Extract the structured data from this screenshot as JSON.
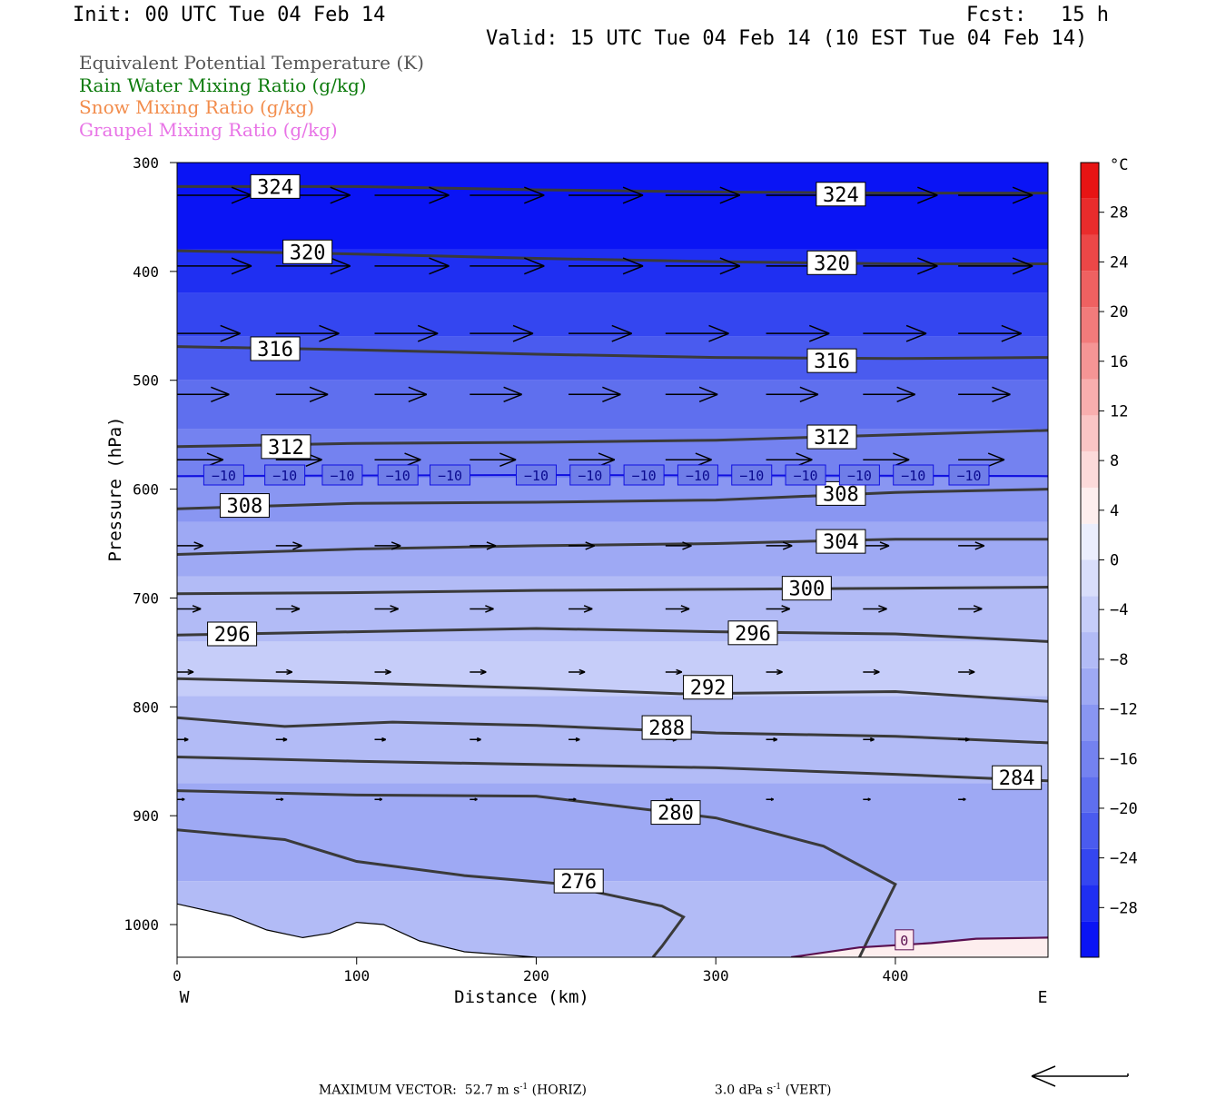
{
  "header": {
    "init": "Init: 00 UTC Tue 04 Feb 14",
    "fcst_label": "Fcst:",
    "fcst_value": "15 h",
    "valid": "Valid: 15 UTC Tue 04 Feb 14 (10 EST Tue 04 Feb 14)"
  },
  "fields": [
    {
      "label": "Equivalent Potential Temperature (K)",
      "color": "#555555"
    },
    {
      "label": "Rain Water Mixing Ratio (g/kg)",
      "color": "#0b7a0b"
    },
    {
      "label": "Snow Mixing Ratio (g/kg)",
      "color": "#f28c4b"
    },
    {
      "label": "Graupel Mixing Ratio (g/kg)",
      "color": "#e873e6"
    }
  ],
  "footer": {
    "max_vector_label": "MAXIMUM VECTOR:",
    "horiz_value": "52.7 m s",
    "horiz_exp": "-1",
    "horiz_tag": "(HORIZ)",
    "vert_value": "3.0 dPa s",
    "vert_exp": "-1",
    "vert_tag": "(VERT)"
  },
  "chart_data": {
    "type": "cross-section",
    "xlabel": "Distance (km)",
    "ylabel": "Pressure (hPa)",
    "xlim": [
      0,
      485
    ],
    "ylim": [
      300,
      1030
    ],
    "x_ticks": [
      0,
      100,
      200,
      300,
      400
    ],
    "y_ticks": [
      300,
      400,
      500,
      600,
      700,
      800,
      900,
      1000
    ],
    "x_end_labels": {
      "left": "W",
      "right": "E"
    },
    "colorbar": {
      "unit": "°C",
      "ticks": [
        28,
        24,
        20,
        16,
        12,
        8,
        4,
        0,
        -4,
        -8,
        -12,
        -16,
        -20,
        -24,
        -28
      ],
      "range": [
        -32,
        32
      ],
      "colors_cold_to_warm": [
        "#0a14f5",
        "#1f2ff2",
        "#3446f0",
        "#4a5bef",
        "#5f6fee",
        "#7482f0",
        "#8996f2",
        "#9ea9f4",
        "#b2bbf6",
        "#c6cdf9",
        "#d9defb",
        "#ebeefd",
        "#fdeeee",
        "#fcdada",
        "#fac5c5",
        "#f8aeae",
        "#f59595",
        "#f27b7b",
        "#ef6161",
        "#ec4747",
        "#e92c2c",
        "#e71414"
      ]
    },
    "theta_e_contours": [
      {
        "value": 324,
        "points": [
          [
            0,
            322
          ],
          [
            100,
            322
          ],
          [
            200,
            325
          ],
          [
            300,
            327
          ],
          [
            400,
            328
          ],
          [
            485,
            328
          ]
        ],
        "labels": [
          [
            42,
            322
          ],
          [
            357,
            329
          ]
        ]
      },
      {
        "value": 320,
        "points": [
          [
            0,
            381
          ],
          [
            100,
            384
          ],
          [
            200,
            388
          ],
          [
            300,
            391
          ],
          [
            400,
            393
          ],
          [
            485,
            393
          ]
        ],
        "labels": [
          [
            60,
            382
          ],
          [
            352,
            392
          ]
        ]
      },
      {
        "value": 316,
        "points": [
          [
            0,
            469
          ],
          [
            100,
            472
          ],
          [
            200,
            476
          ],
          [
            300,
            479
          ],
          [
            400,
            480
          ],
          [
            485,
            479
          ]
        ],
        "labels": [
          [
            42,
            471
          ],
          [
            352,
            482
          ]
        ]
      },
      {
        "value": 312,
        "points": [
          [
            0,
            561
          ],
          [
            100,
            558
          ],
          [
            200,
            557
          ],
          [
            300,
            555
          ],
          [
            400,
            550
          ],
          [
            485,
            546
          ]
        ],
        "labels": [
          [
            48,
            561
          ],
          [
            352,
            552
          ]
        ]
      },
      {
        "value": 308,
        "points": [
          [
            0,
            618
          ],
          [
            100,
            613
          ],
          [
            200,
            612
          ],
          [
            300,
            610
          ],
          [
            400,
            603
          ],
          [
            485,
            600
          ]
        ],
        "labels": [
          [
            25,
            615
          ],
          [
            357,
            604
          ]
        ]
      },
      {
        "value": 304,
        "points": [
          [
            0,
            660
          ],
          [
            100,
            655
          ],
          [
            200,
            652
          ],
          [
            300,
            650
          ],
          [
            400,
            646
          ],
          [
            485,
            646
          ]
        ],
        "labels": [
          [
            357,
            648
          ]
        ]
      },
      {
        "value": 300,
        "points": [
          [
            0,
            696
          ],
          [
            100,
            695
          ],
          [
            200,
            693
          ],
          [
            300,
            692
          ],
          [
            400,
            691
          ],
          [
            485,
            690
          ]
        ],
        "labels": [
          [
            338,
            691
          ]
        ]
      },
      {
        "value": 296,
        "points": [
          [
            0,
            734
          ],
          [
            100,
            731
          ],
          [
            200,
            728
          ],
          [
            300,
            731
          ],
          [
            400,
            733
          ],
          [
            485,
            740
          ]
        ],
        "labels": [
          [
            18,
            733
          ],
          [
            308,
            732
          ]
        ]
      },
      {
        "value": 292,
        "points": [
          [
            0,
            774
          ],
          [
            100,
            778
          ],
          [
            200,
            783
          ],
          [
            280,
            788
          ],
          [
            400,
            786
          ],
          [
            485,
            795
          ]
        ],
        "labels": [
          [
            283,
            782
          ]
        ]
      },
      {
        "value": 288,
        "points": [
          [
            0,
            810
          ],
          [
            60,
            818
          ],
          [
            120,
            814
          ],
          [
            200,
            817
          ],
          [
            300,
            824
          ],
          [
            400,
            827
          ],
          [
            485,
            833
          ]
        ],
        "labels": [
          [
            260,
            819
          ]
        ]
      },
      {
        "value": 284,
        "points": [
          [
            0,
            846
          ],
          [
            100,
            850
          ],
          [
            200,
            853
          ],
          [
            300,
            856
          ],
          [
            400,
            862
          ],
          [
            485,
            868
          ]
        ],
        "labels": [
          [
            455,
            865
          ]
        ]
      },
      {
        "value": 280,
        "points": [
          [
            0,
            877
          ],
          [
            100,
            881
          ],
          [
            200,
            882
          ],
          [
            300,
            902
          ],
          [
            360,
            928
          ],
          [
            400,
            963
          ],
          [
            385,
            1013
          ],
          [
            380,
            1030
          ]
        ],
        "labels": [
          [
            265,
            897
          ]
        ]
      },
      {
        "value": 276,
        "points": [
          [
            0,
            913
          ],
          [
            60,
            922
          ],
          [
            100,
            942
          ],
          [
            160,
            955
          ],
          [
            210,
            962
          ],
          [
            270,
            983
          ],
          [
            282,
            993
          ],
          [
            270,
            1020
          ],
          [
            265,
            1030
          ]
        ],
        "labels": [
          [
            211,
            960
          ]
        ]
      }
    ],
    "minus10_isotherm": {
      "value": -10,
      "points": [
        [
          0,
          588
        ],
        [
          200,
          587
        ],
        [
          485,
          588
        ]
      ],
      "label_x": [
        26,
        60,
        92,
        123,
        152,
        200,
        230,
        260,
        290,
        320,
        350,
        380,
        410,
        441
      ]
    },
    "zero_isotherm": {
      "value": 0,
      "points": [
        [
          342,
          1030
        ],
        [
          380,
          1021
        ],
        [
          420,
          1017
        ],
        [
          445,
          1013
        ],
        [
          485,
          1012
        ]
      ],
      "label_x": [
        405
      ]
    },
    "wind_rows": [
      {
        "p": 330,
        "x": [
          0,
          55,
          110,
          163,
          218,
          272,
          328,
          382,
          435,
          488
        ],
        "speed": 1
      },
      {
        "p": 395,
        "x": [
          0,
          55,
          110,
          163,
          218,
          272,
          328,
          382,
          435,
          488
        ],
        "speed": 1
      },
      {
        "p": 457,
        "x": [
          0,
          55,
          110,
          163,
          218,
          272,
          328,
          382,
          435,
          488
        ],
        "speed": 0.85
      },
      {
        "p": 513,
        "x": [
          0,
          55,
          110,
          163,
          218,
          272,
          328,
          382,
          435,
          488
        ],
        "speed": 0.7
      },
      {
        "p": 573,
        "x": [
          0,
          55,
          110,
          163,
          218,
          272,
          328,
          382,
          435,
          488
        ],
        "speed": 0.62
      },
      {
        "p": 652,
        "x": [
          0,
          55,
          110,
          163,
          218,
          272,
          328,
          382,
          435,
          488
        ],
        "speed": 0.35
      },
      {
        "p": 710,
        "x": [
          0,
          55,
          110,
          163,
          218,
          272,
          328,
          382,
          435,
          488
        ],
        "speed": 0.32
      },
      {
        "p": 768,
        "x": [
          0,
          55,
          110,
          163,
          218,
          272,
          328,
          382,
          435,
          488
        ],
        "speed": 0.22
      },
      {
        "p": 830,
        "x": [
          0,
          55,
          110,
          163,
          218,
          272,
          328,
          382,
          435,
          488
        ],
        "speed": 0.15
      },
      {
        "p": 885,
        "x": [
          0,
          55,
          110,
          163,
          218,
          272,
          328,
          382,
          435,
          488
        ],
        "speed": 0.1
      }
    ],
    "terrain": [
      [
        0,
        981
      ],
      [
        30,
        992
      ],
      [
        50,
        1005
      ],
      [
        70,
        1012
      ],
      [
        85,
        1008
      ],
      [
        100,
        998
      ],
      [
        115,
        1000
      ],
      [
        135,
        1015
      ],
      [
        160,
        1025
      ],
      [
        200,
        1030
      ]
    ]
  }
}
